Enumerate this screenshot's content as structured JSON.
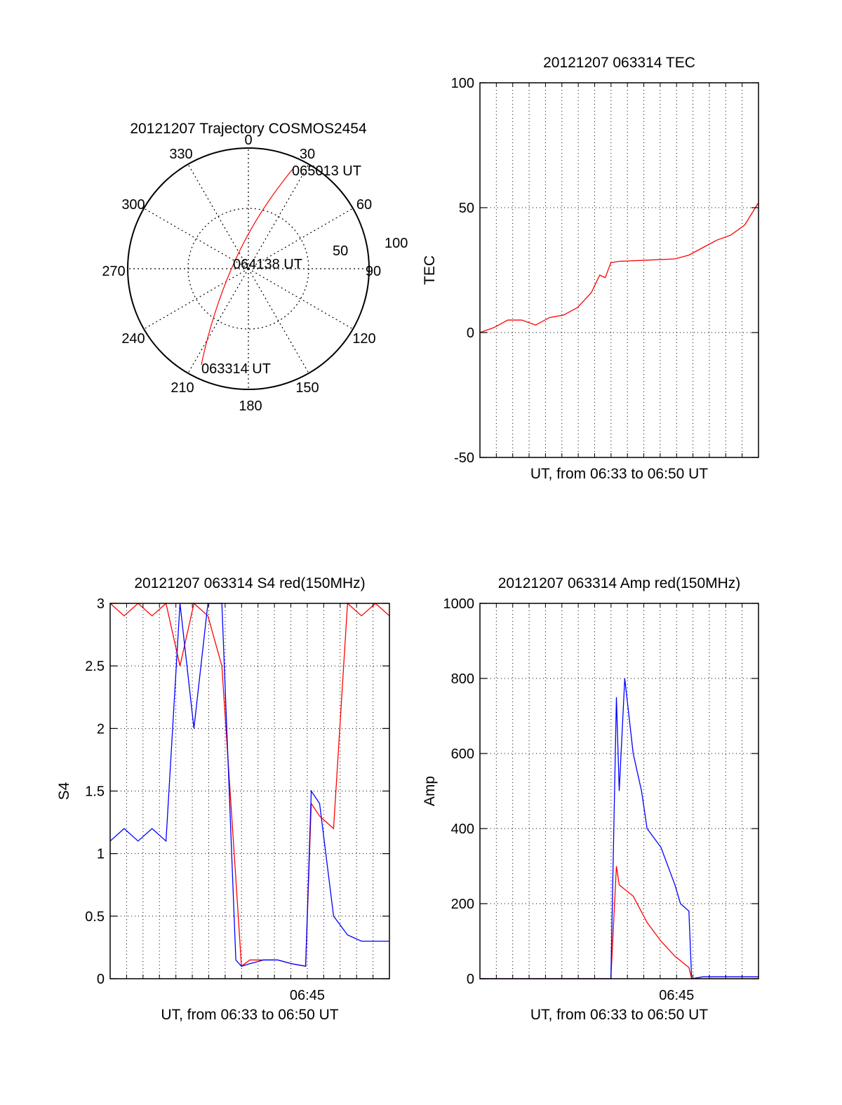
{
  "colors": {
    "red": "#ff0000",
    "blue": "#0000ff",
    "axis": "#000000",
    "grid": "#000000"
  },
  "polar": {
    "title": "20121207 Trajectory COSMOS2454",
    "azimuth_labels": [
      "0",
      "30",
      "60",
      "90",
      "120",
      "150",
      "180",
      "210",
      "240",
      "270",
      "300",
      "330"
    ],
    "elevation_labels": [
      "50",
      "100"
    ],
    "point_labels": [
      "065013 UT",
      "064138 UT",
      "063314 UT"
    ]
  },
  "chart_data": [
    {
      "id": "tec",
      "type": "line",
      "title": "20121207 063314 TEC",
      "xlabel": "UT, from 06:33 to 06:50 UT",
      "ylabel": "TEC",
      "ylim": [
        -50,
        100
      ],
      "yticks": [
        "-50",
        "0",
        "50",
        "100"
      ],
      "xtick_labels": [],
      "grid": true,
      "series": [
        {
          "color": "red",
          "x": [
            0,
            0.05,
            0.1,
            0.15,
            0.2,
            0.25,
            0.3,
            0.35,
            0.4,
            0.43,
            0.45,
            0.47,
            0.5,
            0.6,
            0.7,
            0.75,
            0.8,
            0.85,
            0.9,
            0.95,
            1.0
          ],
          "y": [
            0,
            2,
            5,
            5,
            3,
            6,
            7,
            10,
            16,
            23,
            22,
            28,
            28.5,
            29,
            29.5,
            31,
            34,
            37,
            39,
            43,
            52
          ]
        }
      ]
    },
    {
      "id": "s4",
      "type": "line",
      "title": "20121207 063314 S4 red(150MHz)",
      "xlabel": "UT, from 06:33 to 06:50 UT",
      "ylabel": "S4",
      "ylim": [
        0,
        3
      ],
      "yticks": [
        "0",
        "0.5",
        "1",
        "1.5",
        "2",
        "2.5",
        "3"
      ],
      "xtick_labels": [
        "06:45"
      ],
      "grid": true,
      "series": [
        {
          "color": "red",
          "x": [
            0,
            0.05,
            0.1,
            0.15,
            0.2,
            0.25,
            0.3,
            0.35,
            0.4,
            0.45,
            0.47,
            0.5,
            0.55,
            0.6,
            0.65,
            0.7,
            0.72,
            0.75,
            0.8,
            0.85,
            0.9,
            0.95,
            1.0
          ],
          "y": [
            3,
            2.9,
            3,
            2.9,
            3,
            2.5,
            3,
            2.9,
            2.5,
            0.8,
            0.1,
            0.15,
            0.15,
            0.15,
            0.12,
            0.1,
            1.4,
            1.3,
            1.2,
            3,
            2.9,
            3,
            2.9
          ]
        },
        {
          "color": "blue",
          "x": [
            0,
            0.05,
            0.1,
            0.15,
            0.2,
            0.25,
            0.3,
            0.35,
            0.4,
            0.45,
            0.47,
            0.5,
            0.55,
            0.6,
            0.65,
            0.7,
            0.72,
            0.75,
            0.8,
            0.85,
            0.9,
            0.95,
            1.0
          ],
          "y": [
            1.1,
            1.2,
            1.1,
            1.2,
            1.1,
            3,
            2,
            3,
            3,
            0.15,
            0.1,
            0.12,
            0.15,
            0.15,
            0.12,
            0.1,
            1.5,
            1.4,
            0.5,
            0.35,
            0.3,
            0.3,
            0.3
          ]
        }
      ]
    },
    {
      "id": "amp",
      "type": "line",
      "title": "20121207 063314 Amp red(150MHz)",
      "xlabel": "UT, from 06:33 to 06:50 UT",
      "ylabel": "Amp",
      "ylim": [
        0,
        1000
      ],
      "yticks": [
        "0",
        "200",
        "400",
        "600",
        "800",
        "1000"
      ],
      "xtick_labels": [
        "06:45"
      ],
      "grid": true,
      "series": [
        {
          "color": "red",
          "x": [
            0,
            0.4,
            0.47,
            0.49,
            0.5,
            0.55,
            0.6,
            0.65,
            0.7,
            0.75,
            0.76,
            0.8,
            1.0
          ],
          "y": [
            0,
            0,
            0,
            300,
            250,
            220,
            150,
            100,
            60,
            30,
            0,
            0,
            0
          ]
        },
        {
          "color": "blue",
          "x": [
            0,
            0.4,
            0.47,
            0.49,
            0.5,
            0.52,
            0.55,
            0.58,
            0.6,
            0.65,
            0.7,
            0.72,
            0.75,
            0.76,
            0.8,
            1.0
          ],
          "y": [
            0,
            0,
            0,
            750,
            500,
            800,
            600,
            500,
            400,
            350,
            250,
            200,
            180,
            0,
            5,
            5
          ]
        }
      ]
    }
  ]
}
